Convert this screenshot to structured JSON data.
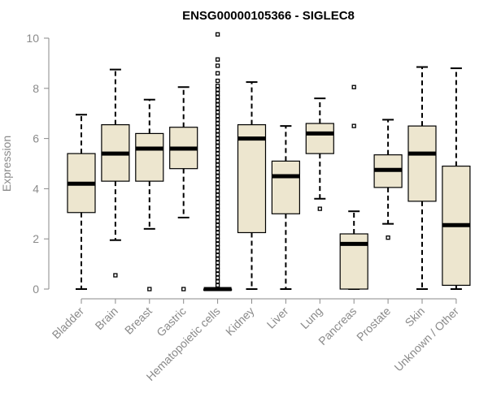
{
  "chart_data": {
    "type": "boxplot",
    "title": "ENSG00000105366 - SIGLEC8",
    "xlabel": "",
    "ylabel": "Expression",
    "ylim": [
      0,
      10
    ],
    "yticks": [
      0,
      2,
      4,
      6,
      8,
      10
    ],
    "box_fill": "#ede6cf",
    "box_stroke": "#000000",
    "axis_color": "#8a8a8a",
    "categories": [
      "Bladder",
      "Brain",
      "Breast",
      "Gastric",
      "Hematopoietic cells",
      "Kidney",
      "Liver",
      "Lung",
      "Pancreas",
      "Prostate",
      "Skin",
      "Unknown / Other"
    ],
    "boxes": [
      {
        "name": "Bladder",
        "whisker_low": 0,
        "q1": 3.05,
        "median": 4.2,
        "q3": 5.4,
        "whisker_high": 6.95,
        "outliers": []
      },
      {
        "name": "Brain",
        "whisker_low": 1.95,
        "q1": 4.3,
        "median": 5.4,
        "q3": 6.55,
        "whisker_high": 8.75,
        "outliers": [
          0.55
        ]
      },
      {
        "name": "Breast",
        "whisker_low": 2.4,
        "q1": 4.3,
        "median": 5.6,
        "q3": 6.2,
        "whisker_high": 7.55,
        "outliers": [
          0
        ]
      },
      {
        "name": "Gastric",
        "whisker_low": 2.85,
        "q1": 4.8,
        "median": 5.6,
        "q3": 6.45,
        "whisker_high": 8.05,
        "outliers": [
          0
        ]
      },
      {
        "name": "Hematopoietic cells",
        "whisker_low": 0,
        "q1": 0,
        "median": 0,
        "q3": 0,
        "whisker_high": 0,
        "outliers": [
          10.15,
          9.15,
          8.9,
          8.6,
          8.3,
          8.1,
          7.95,
          7.8,
          7.65,
          7.5,
          7.35,
          7.2,
          7.05,
          6.9,
          6.75,
          6.6,
          6.45,
          6.3,
          6.15,
          6.0,
          5.85,
          5.7,
          5.55,
          5.4,
          5.25,
          5.1,
          4.95,
          4.8,
          4.65,
          4.5,
          4.35,
          4.2,
          4.05,
          3.9,
          3.75,
          3.6,
          3.45,
          3.3,
          3.15,
          3.0,
          2.85,
          2.7,
          2.55,
          2.4,
          2.25,
          2.1,
          1.95,
          1.8,
          1.65,
          1.5,
          1.35,
          1.2,
          1.05,
          0.9,
          0.75,
          0.6,
          0.45,
          0.3,
          0.15
        ]
      },
      {
        "name": "Kidney",
        "whisker_low": 0,
        "q1": 2.25,
        "median": 6.0,
        "q3": 6.55,
        "whisker_high": 8.25,
        "outliers": []
      },
      {
        "name": "Liver",
        "whisker_low": 0,
        "q1": 3.0,
        "median": 4.5,
        "q3": 5.1,
        "whisker_high": 6.5,
        "outliers": []
      },
      {
        "name": "Lung",
        "whisker_low": 3.6,
        "q1": 5.4,
        "median": 6.2,
        "q3": 6.6,
        "whisker_high": 7.6,
        "outliers": [
          3.2
        ]
      },
      {
        "name": "Pancreas",
        "whisker_low": 0,
        "q1": 0,
        "median": 1.8,
        "q3": 2.2,
        "whisker_high": 3.1,
        "outliers": [
          8.05,
          6.5
        ]
      },
      {
        "name": "Prostate",
        "whisker_low": 2.6,
        "q1": 4.05,
        "median": 4.75,
        "q3": 5.35,
        "whisker_high": 6.75,
        "outliers": [
          2.05
        ]
      },
      {
        "name": "Skin",
        "whisker_low": 0,
        "q1": 3.5,
        "median": 5.4,
        "q3": 6.5,
        "whisker_high": 8.85,
        "outliers": []
      },
      {
        "name": "Unknown / Other",
        "whisker_low": 0,
        "q1": 0.15,
        "median": 2.55,
        "q3": 4.9,
        "whisker_high": 8.8,
        "outliers": []
      }
    ]
  }
}
